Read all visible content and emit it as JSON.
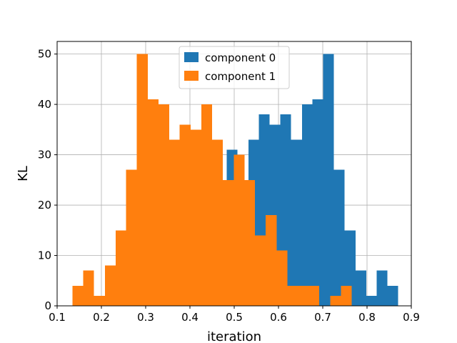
{
  "chart_data": {
    "type": "bar",
    "title": "",
    "xlabel": "iteration",
    "ylabel": "KL",
    "xlim": [
      0.1,
      0.9
    ],
    "ylim": [
      0,
      52.5
    ],
    "xticks": [
      "0.1",
      "0.2",
      "0.3",
      "0.4",
      "0.5",
      "0.6",
      "0.7",
      "0.8",
      "0.9"
    ],
    "yticks": [
      "0",
      "10",
      "20",
      "30",
      "40",
      "50"
    ],
    "grid": true,
    "legend_position": "upper center",
    "series": [
      {
        "name": "component 0",
        "color": "#1f77b4",
        "bins": [
          [
            0.483,
            0.507,
            31
          ],
          [
            0.507,
            0.532,
            25
          ],
          [
            0.532,
            0.556,
            33
          ],
          [
            0.556,
            0.58,
            38
          ],
          [
            0.58,
            0.604,
            36
          ],
          [
            0.604,
            0.628,
            38
          ],
          [
            0.628,
            0.653,
            33
          ],
          [
            0.653,
            0.677,
            40
          ],
          [
            0.677,
            0.701,
            41
          ],
          [
            0.701,
            0.725,
            50
          ],
          [
            0.725,
            0.749,
            27
          ],
          [
            0.749,
            0.774,
            15
          ],
          [
            0.774,
            0.798,
            7
          ],
          [
            0.798,
            0.822,
            2
          ],
          [
            0.822,
            0.846,
            7
          ],
          [
            0.846,
            0.87,
            4
          ]
        ]
      },
      {
        "name": "component 1",
        "color": "#ff7f0e",
        "bins": [
          [
            0.135,
            0.159,
            4
          ],
          [
            0.159,
            0.183,
            7
          ],
          [
            0.183,
            0.208,
            2
          ],
          [
            0.208,
            0.232,
            8
          ],
          [
            0.232,
            0.256,
            15
          ],
          [
            0.256,
            0.28,
            27
          ],
          [
            0.28,
            0.305,
            50
          ],
          [
            0.305,
            0.329,
            41
          ],
          [
            0.329,
            0.353,
            40
          ],
          [
            0.353,
            0.377,
            33
          ],
          [
            0.377,
            0.402,
            36
          ],
          [
            0.402,
            0.426,
            35
          ],
          [
            0.426,
            0.45,
            40
          ],
          [
            0.45,
            0.474,
            33
          ],
          [
            0.474,
            0.499,
            25
          ],
          [
            0.499,
            0.523,
            30
          ],
          [
            0.523,
            0.547,
            25
          ],
          [
            0.547,
            0.571,
            14
          ],
          [
            0.571,
            0.596,
            18
          ],
          [
            0.596,
            0.62,
            11
          ],
          [
            0.62,
            0.644,
            4
          ],
          [
            0.644,
            0.668,
            4
          ],
          [
            0.668,
            0.692,
            4
          ],
          [
            0.692,
            0.717,
            0
          ],
          [
            0.717,
            0.741,
            2
          ],
          [
            0.741,
            0.765,
            4
          ]
        ]
      }
    ]
  }
}
